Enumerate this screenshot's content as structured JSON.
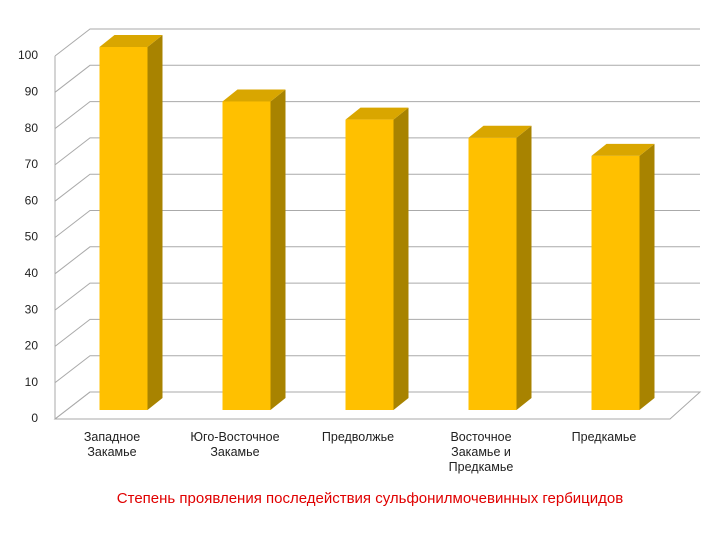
{
  "chart_data": {
    "type": "bar3d",
    "title": "Степень проявления последействия сульфонилмочевинных гербицидов",
    "categories": [
      "Западное Закамье",
      "Юго-Восточное Закамье",
      "Предволжье",
      "Восточное Закамье и Предкамье",
      "Предкамье"
    ],
    "values": [
      100,
      85,
      80,
      75,
      70
    ],
    "color": "#FFC000",
    "ylim": [
      0,
      100
    ],
    "yticks": [
      0,
      10,
      20,
      30,
      40,
      50,
      60,
      70,
      80,
      90,
      100
    ],
    "grid": true
  }
}
